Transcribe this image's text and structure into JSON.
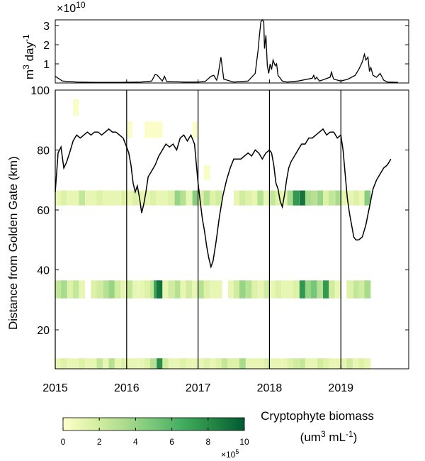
{
  "chart_data": [
    {
      "type": "line",
      "panel": "flow",
      "ylabel": "m",
      "ylabel_sup1": "3",
      "ylabel_mid": " day",
      "ylabel_sup2": "-1",
      "exponent_base": "×10",
      "exponent_power": "10",
      "ylim": [
        0,
        3.3
      ],
      "yticks": [
        "1",
        "2",
        "3"
      ],
      "ytick_values": [
        1,
        2,
        3
      ],
      "xlim": [
        2015.0,
        2019.95
      ],
      "series": [
        {
          "x": [
            2015.0,
            2015.1,
            2015.3,
            2015.6,
            2015.9,
            2016.2,
            2016.35,
            2016.4,
            2016.43,
            2016.5,
            2016.53,
            2016.56,
            2016.8,
            2017.0,
            2017.1,
            2017.18,
            2017.22,
            2017.26,
            2017.28,
            2017.32,
            2017.36,
            2017.5,
            2017.7,
            2017.8,
            2017.84,
            2017.86,
            2017.88,
            2017.9,
            2017.92,
            2017.93,
            2017.95,
            2017.97,
            2017.99,
            2018.01,
            2018.03,
            2018.05,
            2018.08,
            2018.1,
            2018.12,
            2018.14,
            2018.18,
            2018.25,
            2018.4,
            2018.6,
            2018.62,
            2018.64,
            2018.66,
            2018.7,
            2018.85,
            2018.87,
            2018.88,
            2018.9,
            2019.0,
            2019.1,
            2019.2,
            2019.25,
            2019.3,
            2019.33,
            2019.35,
            2019.38,
            2019.4,
            2019.42,
            2019.45,
            2019.5,
            2019.55,
            2019.6,
            2019.65,
            2019.8
          ],
          "y": [
            0.35,
            0.1,
            0.05,
            0.03,
            0.03,
            0.05,
            0.1,
            0.45,
            0.4,
            0.1,
            0.35,
            0.08,
            0.05,
            0.05,
            0.08,
            0.35,
            0.4,
            0.15,
            0.4,
            1.35,
            0.2,
            0.05,
            0.1,
            0.5,
            1.7,
            2.5,
            3.2,
            3.3,
            3.2,
            1.8,
            2.5,
            0.9,
            0.5,
            1.0,
            0.7,
            1.2,
            0.9,
            1.0,
            0.4,
            0.3,
            0.1,
            0.05,
            0.1,
            0.25,
            0.4,
            0.2,
            0.3,
            0.1,
            0.3,
            0.6,
            0.4,
            0.2,
            0.1,
            0.2,
            0.4,
            0.7,
            1.1,
            1.5,
            1.2,
            1.35,
            0.6,
            0.8,
            0.4,
            0.3,
            0.5,
            0.15,
            0.05,
            0.03
          ]
        }
      ]
    },
    {
      "type": "heatmap",
      "panel": "biomass",
      "ylabel": "Distance from Golden Gate  (km)",
      "ylim": [
        7,
        100
      ],
      "xlim": [
        2015.0,
        2019.95
      ],
      "yticks": [
        "20",
        "40",
        "60",
        "80",
        "100"
      ],
      "ytick_values": [
        20,
        40,
        60,
        80,
        100
      ],
      "xticks": [
        "2015",
        "2016",
        "2017",
        "2018",
        "2019"
      ],
      "xtick_values": [
        2015,
        2016,
        2017,
        2018,
        2019
      ],
      "year_lines": [
        2016,
        2017,
        2018,
        2019
      ],
      "cells": [
        {
          "x0": 2015.25,
          "x1": 2015.33,
          "y0": 91.5,
          "y1": 97,
          "v": 0.3
        },
        {
          "x0": 2016.0,
          "x1": 2016.08,
          "y0": 84,
          "y1": 89.5,
          "v": 0.2
        },
        {
          "x0": 2016.25,
          "x1": 2016.5,
          "y0": 84,
          "y1": 89.5,
          "v": 0.2
        },
        {
          "x0": 2016.92,
          "x1": 2017.0,
          "y0": 84,
          "y1": 89.5,
          "v": 0.2
        },
        {
          "x0": 2017.08,
          "x1": 2017.17,
          "y0": 70,
          "y1": 75,
          "v": 0.3
        }
      ],
      "bands": [
        {
          "y0": 61.5,
          "y1": 66.5,
          "x0": [
            2015.0,
            2015.08,
            2015.17,
            2015.25,
            2015.33,
            2015.42,
            2015.5,
            2015.58,
            2015.67,
            2015.75,
            2015.83,
            2015.92,
            2016.0,
            2016.08,
            2016.17,
            2016.25,
            2016.33,
            2016.42,
            2016.5,
            2016.58,
            2016.67,
            2016.75,
            2016.83,
            2016.92,
            2017.0,
            2017.08,
            2017.17,
            2017.25,
            2017.5,
            2017.58,
            2017.67,
            2017.75,
            2017.83,
            2017.92,
            2018.0,
            2018.08,
            2018.17,
            2018.25,
            2018.33,
            2018.42,
            2018.5,
            2018.58,
            2018.67,
            2018.75,
            2018.83,
            2018.92,
            2019.0,
            2019.08,
            2019.17,
            2019.25,
            2019.33
          ],
          "v": [
            1.0,
            1.5,
            1.0,
            1.0,
            2.5,
            1.0,
            1.0,
            1.5,
            1.0,
            1.0,
            1.0,
            1.5,
            1.0,
            1.5,
            1.0,
            1.0,
            1.5,
            1.0,
            1.0,
            1.5,
            4.0,
            3.0,
            1.0,
            4.5,
            1.5,
            3.0,
            1.5,
            2.0,
            1.0,
            2.0,
            1.5,
            1.0,
            3.0,
            1.0,
            2.5,
            1.5,
            1.0,
            3.5,
            7.5,
            9.0,
            3.5,
            3.0,
            4.0,
            1.5,
            2.5,
            3.5,
            1.0,
            1.0,
            1.5,
            1.0,
            4.5
          ]
        },
        {
          "y0": 30.5,
          "y1": 36.5,
          "x0": [
            2015.0,
            2015.08,
            2015.17,
            2015.25,
            2015.33,
            2015.5,
            2015.58,
            2015.67,
            2015.75,
            2015.83,
            2015.92,
            2016.0,
            2016.08,
            2016.17,
            2016.25,
            2016.33,
            2016.38,
            2016.42,
            2016.5,
            2016.58,
            2016.67,
            2016.75,
            2016.83,
            2016.92,
            2017.0,
            2017.08,
            2017.17,
            2017.25,
            2017.42,
            2017.5,
            2017.58,
            2017.67,
            2017.75,
            2017.83,
            2017.92,
            2018.0,
            2018.08,
            2018.17,
            2018.25,
            2018.33,
            2018.42,
            2018.5,
            2018.58,
            2018.67,
            2018.75,
            2018.83,
            2018.92,
            2019.08,
            2019.17,
            2019.25,
            2019.33
          ],
          "v": [
            2.5,
            3.5,
            1.5,
            2.5,
            1.0,
            1.5,
            2.0,
            3.0,
            4.0,
            2.0,
            1.0,
            2.5,
            1.0,
            1.0,
            1.5,
            2.5,
            7.0,
            9.0,
            1.0,
            2.0,
            3.0,
            1.0,
            2.0,
            1.0,
            3.0,
            1.5,
            1.0,
            1.0,
            1.0,
            2.0,
            4.0,
            3.0,
            1.5,
            1.0,
            2.0,
            1.0,
            1.5,
            1.0,
            1.0,
            1.5,
            7.5,
            4.0,
            5.0,
            3.0,
            7.5,
            2.0,
            1.0,
            1.5,
            2.5,
            2.0,
            3.5
          ]
        },
        {
          "y0": 7.0,
          "y1": 10.5,
          "x0": [
            2015.0,
            2015.08,
            2015.17,
            2015.25,
            2015.33,
            2015.42,
            2015.5,
            2015.58,
            2015.67,
            2015.75,
            2015.83,
            2015.92,
            2016.0,
            2016.08,
            2016.17,
            2016.25,
            2016.33,
            2016.42,
            2016.5,
            2016.58,
            2016.67,
            2016.75,
            2016.83,
            2016.92,
            2017.0,
            2017.08,
            2017.17,
            2017.25,
            2017.33,
            2017.42,
            2017.5,
            2017.58,
            2017.67,
            2017.75,
            2017.83,
            2017.92,
            2018.0,
            2018.08,
            2018.17,
            2018.25,
            2018.33,
            2018.42,
            2018.5,
            2018.58,
            2018.67,
            2018.75,
            2018.83,
            2018.92,
            2019.0,
            2019.08,
            2019.17,
            2019.25,
            2019.33
          ],
          "v": [
            1.0,
            1.5,
            1.0,
            1.0,
            1.5,
            1.0,
            1.0,
            2.5,
            1.0,
            3.0,
            1.0,
            1.5,
            1.0,
            1.0,
            1.0,
            1.5,
            3.0,
            8.0,
            2.0,
            1.0,
            1.0,
            1.5,
            1.0,
            1.0,
            1.0,
            1.5,
            1.0,
            1.5,
            2.5,
            1.5,
            1.5,
            3.5,
            1.0,
            1.0,
            1.0,
            1.5,
            1.0,
            1.0,
            1.0,
            1.5,
            2.0,
            2.5,
            1.0,
            1.0,
            2.0,
            1.5,
            1.0,
            1.0,
            1.0,
            2.0,
            1.0,
            1.5,
            1.0
          ]
        }
      ],
      "line": {
        "x": [
          2015.0,
          2015.04,
          2015.08,
          2015.12,
          2015.16,
          2015.2,
          2015.25,
          2015.3,
          2015.35,
          2015.4,
          2015.45,
          2015.5,
          2015.55,
          2015.6,
          2015.65,
          2015.7,
          2015.75,
          2015.8,
          2015.85,
          2015.9,
          2015.95,
          2016.0,
          2016.03,
          2016.06,
          2016.09,
          2016.12,
          2016.15,
          2016.18,
          2016.21,
          2016.24,
          2016.27,
          2016.3,
          2016.35,
          2016.4,
          2016.45,
          2016.5,
          2016.55,
          2016.6,
          2016.65,
          2016.7,
          2016.75,
          2016.8,
          2016.85,
          2016.9,
          2016.95,
          2017.0,
          2017.03,
          2017.06,
          2017.09,
          2017.12,
          2017.15,
          2017.18,
          2017.21,
          2017.25,
          2017.3,
          2017.35,
          2017.4,
          2017.45,
          2017.5,
          2017.55,
          2017.6,
          2017.65,
          2017.7,
          2017.75,
          2017.8,
          2017.85,
          2017.9,
          2017.95,
          2018.0,
          2018.03,
          2018.06,
          2018.09,
          2018.12,
          2018.15,
          2018.18,
          2018.21,
          2018.24,
          2018.27,
          2018.3,
          2018.35,
          2018.4,
          2018.45,
          2018.5,
          2018.55,
          2018.6,
          2018.65,
          2018.7,
          2018.75,
          2018.8,
          2018.85,
          2018.9,
          2018.95,
          2019.0,
          2019.03,
          2019.06,
          2019.09,
          2019.12,
          2019.15,
          2019.18,
          2019.21,
          2019.25,
          2019.3,
          2019.35,
          2019.4,
          2019.45,
          2019.5,
          2019.55,
          2019.6,
          2019.65,
          2019.7
        ],
        "y": [
          66,
          79,
          81,
          74,
          76,
          79,
          83,
          85,
          84,
          85,
          86,
          85,
          86,
          86,
          85,
          86,
          87,
          86,
          86,
          85,
          84,
          81,
          79,
          75,
          69,
          66,
          68,
          64,
          59,
          62,
          66,
          71,
          73,
          75,
          78,
          80,
          82,
          81,
          82,
          80,
          84,
          85,
          83,
          85,
          82,
          69,
          63,
          57,
          53,
          48,
          44,
          41,
          43,
          49,
          58,
          65,
          70,
          74,
          77,
          77,
          77,
          78,
          79,
          78,
          80,
          79,
          77,
          79,
          80,
          79,
          75,
          69,
          67,
          63,
          61,
          65,
          70,
          74,
          76,
          78,
          80,
          82,
          82,
          84,
          84,
          85,
          86,
          87,
          85,
          86,
          86,
          84,
          85,
          80,
          72,
          64,
          59,
          55,
          51,
          50,
          50,
          51,
          55,
          61,
          67,
          70,
          72,
          74,
          75,
          77,
          75,
          75
        ]
      }
    }
  ],
  "colorbar": {
    "title_line1": "Cryptophyte biomass",
    "title_line2_prefix": "(um",
    "title_line2_sup1": "3",
    "title_line2_mid": " mL",
    "title_line2_sup2": "-1",
    "title_line2_suffix": ")",
    "ticks": [
      "0",
      "2",
      "4",
      "6",
      "8",
      "10"
    ],
    "tick_values": [
      0,
      2,
      4,
      6,
      8,
      10
    ],
    "range": [
      0,
      10
    ],
    "exponent_base": "×10",
    "exponent_power": "5",
    "colors": [
      "#ffffcc",
      "#d9f0a3",
      "#addd8e",
      "#78c679",
      "#41ab5d",
      "#238443",
      "#005a32"
    ]
  }
}
